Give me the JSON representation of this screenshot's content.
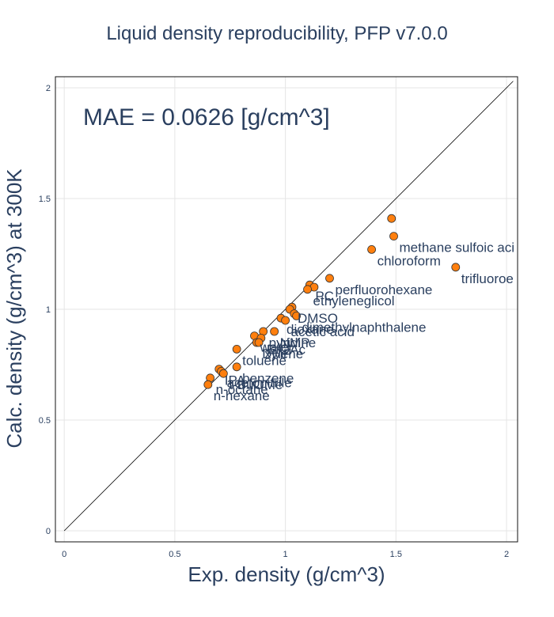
{
  "chart_data": {
    "type": "scatter",
    "title": "Liquid density reproducibility, PFP v7.0.0",
    "xlabel": "Exp. density (g/cm^3)",
    "ylabel": "Calc. density (g/cm^3) at 300K",
    "xlim": [
      -0.04,
      2.05
    ],
    "ylim": [
      -0.05,
      2.05
    ],
    "xticks": [
      0,
      0.5,
      1,
      1.5,
      2
    ],
    "yticks": [
      0,
      0.5,
      1,
      1.5,
      2
    ],
    "xtick_labels": [
      "0",
      "0.5",
      "1",
      "1.5",
      "2"
    ],
    "ytick_labels": [
      "0",
      "0.5",
      "1",
      "1.5",
      "2"
    ],
    "grid": true,
    "reference_line": [
      [
        0,
        0
      ],
      [
        2.03,
        2.03
      ]
    ],
    "annotation": "MAE = 0.0626 [g/cm^3]",
    "marker_color": "#ff7f0e",
    "marker_edge_color": "#333333",
    "points": [
      {
        "x": 1.48,
        "y": 1.41,
        "label": ""
      },
      {
        "x": 1.49,
        "y": 1.33,
        "label": "methane sulfoic acid"
      },
      {
        "x": 1.39,
        "y": 1.27,
        "label": "chloroform"
      },
      {
        "x": 1.77,
        "y": 1.19,
        "label": "trifluoroethanol"
      },
      {
        "x": 1.2,
        "y": 1.14,
        "label": "perfluorohexane"
      },
      {
        "x": 1.11,
        "y": 1.11,
        "label": "PC"
      },
      {
        "x": 1.13,
        "y": 1.1,
        "label": ""
      },
      {
        "x": 1.1,
        "y": 1.09,
        "label": "ethyleneglicol"
      },
      {
        "x": 1.03,
        "y": 1.01,
        "label": "DMSO"
      },
      {
        "x": 1.02,
        "y": 1.0,
        "label": ""
      },
      {
        "x": 1.04,
        "y": 0.98,
        "label": ""
      },
      {
        "x": 1.05,
        "y": 0.97,
        "label": "dimethylnaphthalene"
      },
      {
        "x": 0.98,
        "y": 0.96,
        "label": "dioxane"
      },
      {
        "x": 1.0,
        "y": 0.95,
        "label": "acetic acid"
      },
      {
        "x": 0.95,
        "y": 0.9,
        "label": "NMP"
      },
      {
        "x": 0.9,
        "y": 0.9,
        "label": "pyridine"
      },
      {
        "x": 0.86,
        "y": 0.88,
        "label": "water"
      },
      {
        "x": 0.89,
        "y": 0.87,
        "label": "EtOAc"
      },
      {
        "x": 0.87,
        "y": 0.85,
        "label": "DMF"
      },
      {
        "x": 0.78,
        "y": 0.82,
        "label": "toluene"
      },
      {
        "x": 0.88,
        "y": 0.85,
        "label": "xylene"
      },
      {
        "x": 0.78,
        "y": 0.74,
        "label": "benzene"
      },
      {
        "x": 0.7,
        "y": 0.73,
        "label": "IPA"
      },
      {
        "x": 0.71,
        "y": 0.72,
        "label": "acetonitrile"
      },
      {
        "x": 0.66,
        "y": 0.69,
        "label": "n-octane"
      },
      {
        "x": 0.72,
        "y": 0.71,
        "label": "t-BuOMe"
      },
      {
        "x": 0.65,
        "y": 0.66,
        "label": "n-hexane"
      }
    ]
  }
}
